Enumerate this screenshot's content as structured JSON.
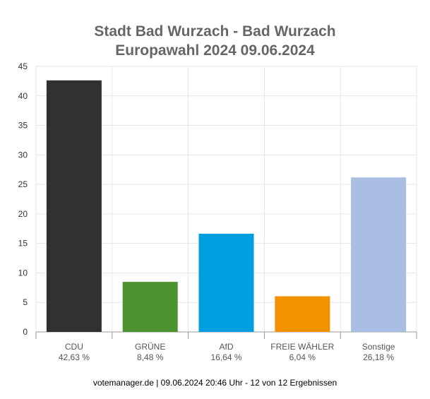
{
  "chart_data": {
    "type": "bar",
    "title": "Stadt Bad Wurzach - Bad Wurzach",
    "subtitle": "Europawahl 2024 09.06.2024",
    "categories": [
      "CDU",
      "GRÜNE",
      "AfD",
      "FREIE WÄHLER",
      "Sonstige"
    ],
    "values": [
      42.63,
      8.48,
      16.64,
      6.04,
      26.18
    ],
    "value_labels": [
      "42,63 %",
      "8,48 %",
      "16,64 %",
      "6,04 %",
      "26,18 %"
    ],
    "colors": [
      "#333130",
      "#4a932e",
      "#009fe0",
      "#f39200",
      "#aabde3"
    ],
    "ylim": [
      0,
      45
    ],
    "yticks": [
      0,
      5,
      10,
      15,
      20,
      25,
      30,
      35,
      40,
      45
    ],
    "grid": true,
    "legend": false
  },
  "footer": "votemanager.de | 09.06.2024 20:46 Uhr - 12 von 12 Ergebnissen"
}
